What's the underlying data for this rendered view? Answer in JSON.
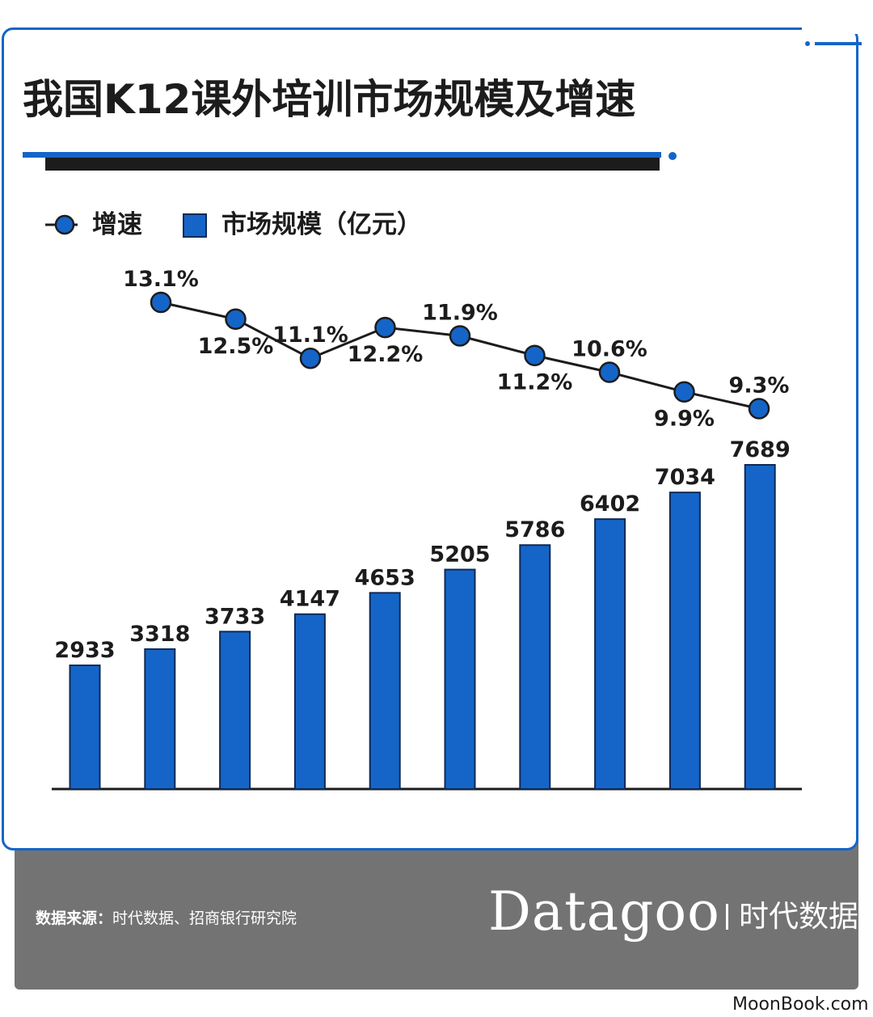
{
  "header": {
    "title": "我国K12课外培训市场规模及增速"
  },
  "legend": {
    "line_label": "增速",
    "bar_label": "市场规模（亿元）"
  },
  "footer": {
    "source_label": "数据来源：",
    "source_text": "时代数据、招商银行研究院",
    "brand": "Datagoo",
    "brand_cn": "时代数据"
  },
  "watermark": "MoonBook.com",
  "colors": {
    "accent": "#1565c8",
    "dark": "#1c1c1c",
    "footer": "#737373"
  },
  "chart_data": {
    "type": "bar",
    "title": "我国K12课外培训市场规模及增速",
    "series": [
      {
        "name": "市场规模（亿元）",
        "type": "bar",
        "values": [
          2933,
          3318,
          3733,
          4147,
          4653,
          5205,
          5786,
          6402,
          7034,
          7689
        ]
      },
      {
        "name": "增速",
        "type": "line",
        "values": [
          13.1,
          12.5,
          11.1,
          12.2,
          11.9,
          11.2,
          10.6,
          9.9,
          9.3
        ],
        "labels": [
          "13.1%",
          "12.5%",
          "11.1%",
          "12.2%",
          "11.9%",
          "11.2%",
          "10.6%",
          "9.9%",
          "9.3%"
        ],
        "label_positions": [
          "above",
          "below",
          "above",
          "below",
          "above",
          "below",
          "above",
          "below",
          "above"
        ]
      }
    ],
    "legend": "top-left",
    "grid": false
  }
}
